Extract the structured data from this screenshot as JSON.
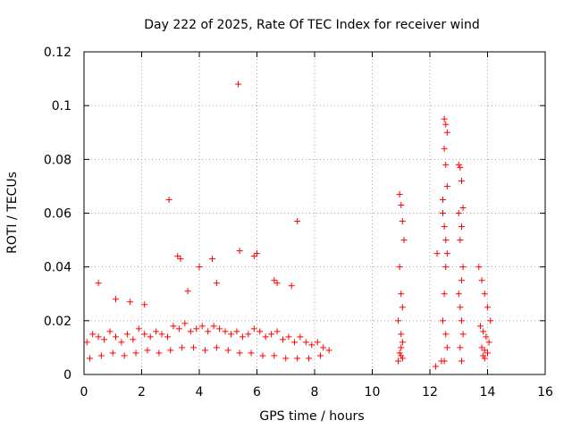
{
  "chart_data": {
    "type": "scatter",
    "title": "Day 222 of 2025, Rate Of TEC Index for receiver wind",
    "xlabel": "GPS time / hours",
    "ylabel": "ROTI / TECUs",
    "xlim": [
      0,
      16
    ],
    "ylim": [
      0,
      0.12
    ],
    "x_ticks": [
      "0",
      "2",
      "4",
      "6",
      "8",
      "10",
      "12",
      "14",
      "16"
    ],
    "y_ticks": [
      "0",
      "0.02",
      "0.04",
      "0.06",
      "0.08",
      "0.1",
      "0.12"
    ],
    "grid": true,
    "marker": "+",
    "series": [
      {
        "name": "ROTI",
        "color": "#ff0000",
        "x": [
          0.1,
          0.3,
          0.5,
          0.7,
          0.9,
          1.1,
          1.3,
          1.5,
          1.7,
          1.9,
          2.1,
          2.3,
          2.5,
          2.7,
          2.9,
          3.1,
          3.3,
          3.5,
          3.7,
          3.9,
          4.1,
          4.3,
          4.5,
          4.7,
          4.9,
          5.1,
          5.3,
          5.5,
          5.7,
          5.9,
          6.1,
          6.3,
          6.5,
          6.7,
          6.9,
          7.1,
          7.3,
          7.5,
          7.7,
          7.9,
          8.1,
          8.3,
          8.5,
          0.2,
          0.6,
          1.0,
          1.4,
          1.8,
          2.2,
          2.6,
          3.0,
          3.4,
          3.8,
          4.2,
          4.6,
          5.0,
          5.4,
          5.8,
          6.2,
          6.6,
          7.0,
          7.4,
          7.8,
          8.2,
          0.5,
          1.1,
          1.6,
          2.1,
          2.95,
          3.25,
          3.35,
          3.6,
          4.0,
          4.45,
          4.6,
          5.35,
          5.4,
          5.9,
          6.0,
          6.6,
          6.7,
          7.2,
          7.4,
          10.9,
          10.95,
          11.0,
          11.05,
          11.1,
          10.95,
          11.0,
          11.05,
          10.9,
          11.0,
          11.05,
          11.0,
          10.95,
          11.0,
          11.05,
          12.2,
          12.25,
          12.4,
          12.45,
          12.5,
          12.55,
          12.6,
          12.5,
          12.55,
          12.6,
          12.45,
          12.5,
          12.55,
          12.6,
          12.55,
          12.5,
          12.45,
          12.55,
          12.6,
          12.5,
          13.0,
          13.05,
          13.1,
          13.15,
          13.0,
          13.1,
          13.05,
          13.15,
          13.1,
          13.0,
          13.05,
          13.1,
          13.15,
          13.05,
          13.1,
          13.7,
          13.8,
          13.9,
          14.0,
          14.1,
          13.75,
          13.85,
          13.95,
          14.05,
          13.8,
          13.9,
          14.0,
          13.85,
          13.9
        ],
        "y": [
          0.012,
          0.015,
          0.014,
          0.013,
          0.016,
          0.014,
          0.012,
          0.015,
          0.013,
          0.017,
          0.015,
          0.014,
          0.016,
          0.015,
          0.014,
          0.018,
          0.017,
          0.019,
          0.016,
          0.017,
          0.018,
          0.016,
          0.018,
          0.017,
          0.016,
          0.015,
          0.016,
          0.014,
          0.015,
          0.017,
          0.016,
          0.014,
          0.015,
          0.016,
          0.013,
          0.014,
          0.012,
          0.014,
          0.012,
          0.011,
          0.012,
          0.01,
          0.009,
          0.006,
          0.007,
          0.008,
          0.007,
          0.008,
          0.009,
          0.008,
          0.009,
          0.01,
          0.01,
          0.009,
          0.01,
          0.009,
          0.008,
          0.008,
          0.007,
          0.007,
          0.006,
          0.006,
          0.006,
          0.007,
          0.034,
          0.028,
          0.027,
          0.026,
          0.065,
          0.044,
          0.043,
          0.031,
          0.04,
          0.043,
          0.034,
          0.108,
          0.046,
          0.044,
          0.045,
          0.035,
          0.034,
          0.033,
          0.057,
          0.005,
          0.067,
          0.063,
          0.057,
          0.05,
          0.04,
          0.03,
          0.025,
          0.02,
          0.015,
          0.012,
          0.01,
          0.008,
          0.007,
          0.006,
          0.003,
          0.045,
          0.005,
          0.065,
          0.095,
          0.093,
          0.09,
          0.084,
          0.078,
          0.07,
          0.06,
          0.055,
          0.05,
          0.045,
          0.04,
          0.03,
          0.02,
          0.015,
          0.01,
          0.005,
          0.078,
          0.077,
          0.072,
          0.062,
          0.06,
          0.055,
          0.05,
          0.04,
          0.035,
          0.03,
          0.025,
          0.02,
          0.015,
          0.01,
          0.005,
          0.04,
          0.035,
          0.03,
          0.025,
          0.02,
          0.018,
          0.016,
          0.014,
          0.012,
          0.01,
          0.009,
          0.008,
          0.007,
          0.006
        ]
      }
    ]
  }
}
